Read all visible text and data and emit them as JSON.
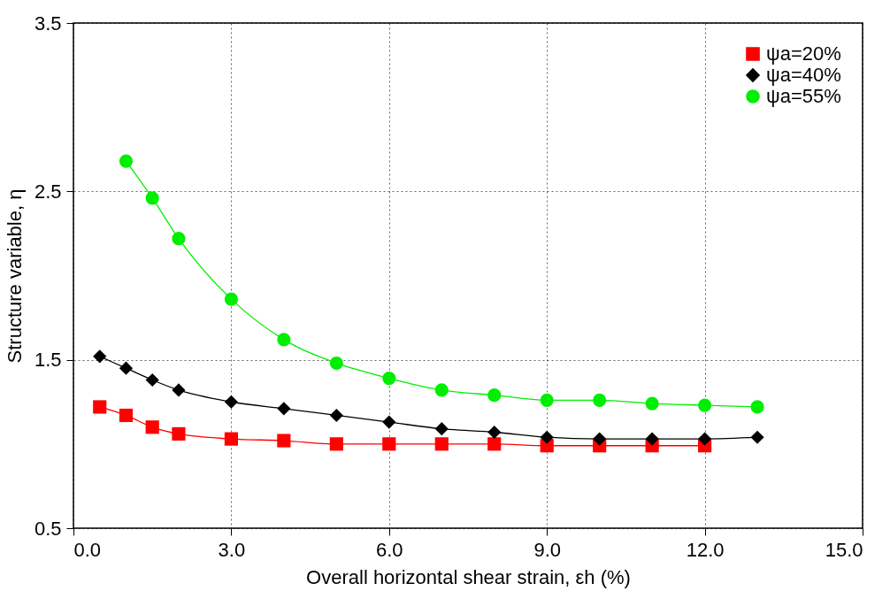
{
  "chart_data": {
    "type": "line",
    "xlabel": "Overall horizontal shear strain, εh (%)",
    "ylabel": "Structure variable, η",
    "xlim": [
      0,
      15
    ],
    "xticks": [
      {
        "value": 0,
        "label": "0.0"
      },
      {
        "value": 3,
        "label": "3.0"
      },
      {
        "value": 6,
        "label": "6.0"
      },
      {
        "value": 9,
        "label": "9.0"
      },
      {
        "value": 12,
        "label": "12.0"
      },
      {
        "value": 15,
        "label": "15.0"
      }
    ],
    "ylim": [
      0.5,
      3.5
    ],
    "yticks": [
      0.5,
      1.5,
      2.5,
      3.5
    ],
    "grid": true,
    "legend": "top right",
    "line_style": "solid",
    "series": [
      {
        "name": "ψa=20%",
        "color": "#ff0000",
        "marker": "square",
        "x": [
          0.5,
          1,
          1.5,
          2,
          3,
          4,
          5,
          6,
          7,
          8,
          9,
          10,
          11,
          12
        ],
        "values": [
          1.22,
          1.17,
          1.1,
          1.06,
          1.03,
          1.02,
          1.0,
          1.0,
          1.0,
          1.0,
          0.99,
          0.99,
          0.99,
          0.99
        ]
      },
      {
        "name": "ψa=40%",
        "color": "#000000",
        "marker": "diamond",
        "x": [
          0.5,
          1,
          1.5,
          2,
          3,
          4,
          5,
          6,
          7,
          8,
          9,
          10,
          11,
          12,
          13
        ],
        "values": [
          1.52,
          1.45,
          1.38,
          1.32,
          1.25,
          1.21,
          1.17,
          1.13,
          1.09,
          1.07,
          1.04,
          1.03,
          1.03,
          1.03,
          1.04
        ]
      },
      {
        "name": "ψa=55%",
        "color": "#00ee00",
        "marker": "circle",
        "x": [
          1,
          1.5,
          2,
          3,
          4,
          5,
          6,
          7,
          8,
          9,
          10,
          11,
          12,
          13
        ],
        "values": [
          2.68,
          2.46,
          2.22,
          1.86,
          1.62,
          1.48,
          1.39,
          1.32,
          1.29,
          1.26,
          1.26,
          1.24,
          1.23,
          1.22
        ]
      }
    ]
  }
}
